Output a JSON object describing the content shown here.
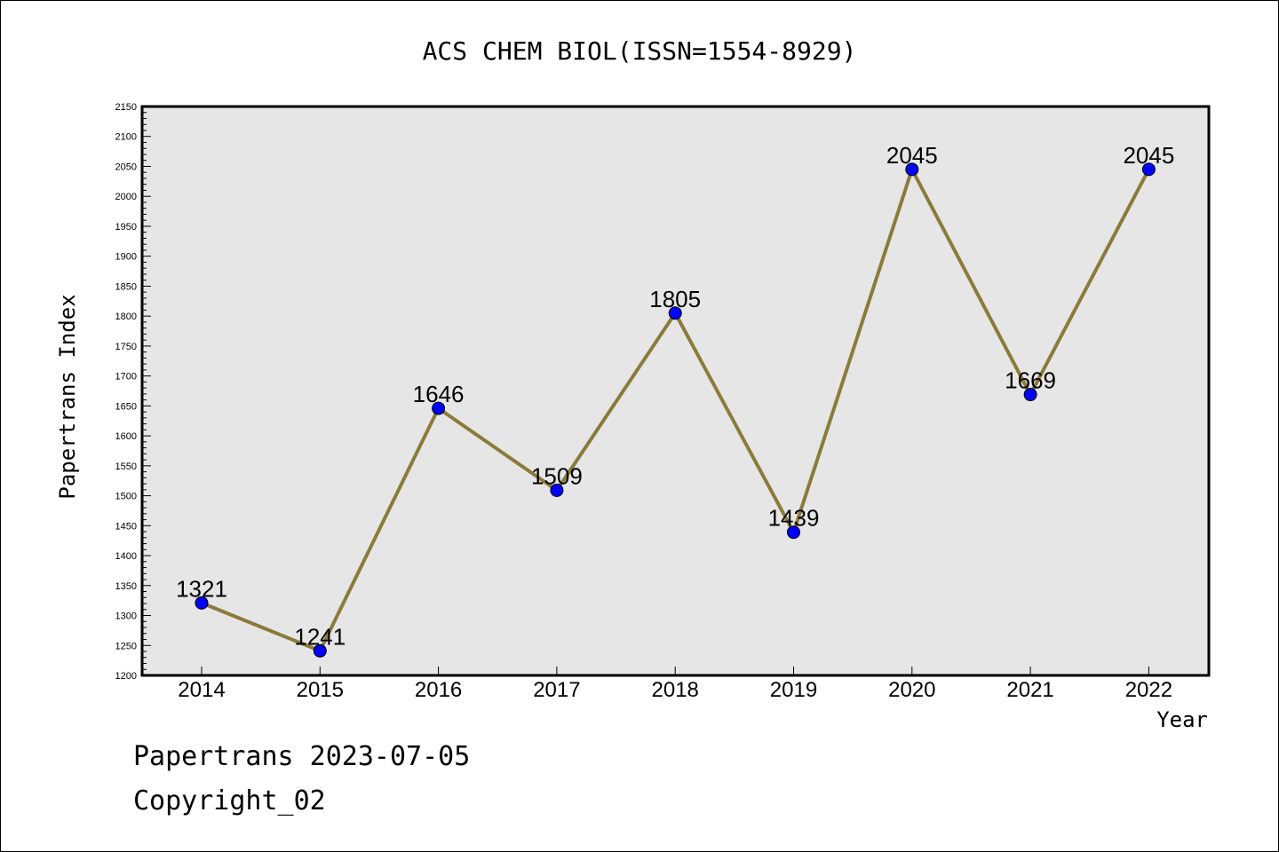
{
  "chart_data": {
    "type": "line",
    "title": "ACS CHEM BIOL(ISSN=1554-8929)",
    "xlabel": "Year",
    "ylabel": "Papertrans Index",
    "categories": [
      "2014",
      "2015",
      "2016",
      "2017",
      "2018",
      "2019",
      "2020",
      "2021",
      "2022"
    ],
    "values": [
      1321,
      1241,
      1646,
      1509,
      1805,
      1439,
      2045,
      1669,
      2045
    ],
    "data_labels": [
      "1321",
      "1241",
      "1646",
      "1509",
      "1805",
      "1439",
      "2045",
      "1669",
      "2045"
    ],
    "ylim": [
      1200,
      2150
    ],
    "yticks": [
      1200,
      1250,
      1300,
      1350,
      1400,
      1450,
      1500,
      1550,
      1600,
      1650,
      1700,
      1750,
      1800,
      1850,
      1900,
      1950,
      2000,
      2050,
      2100,
      2150
    ],
    "grid": false,
    "colors": {
      "line": "#8b7b3a",
      "marker": "#0000ff",
      "plot_background": "#e6e6e6"
    }
  },
  "footer": {
    "line1": "Papertrans 2023-07-05",
    "line2": "Copyright_02"
  }
}
